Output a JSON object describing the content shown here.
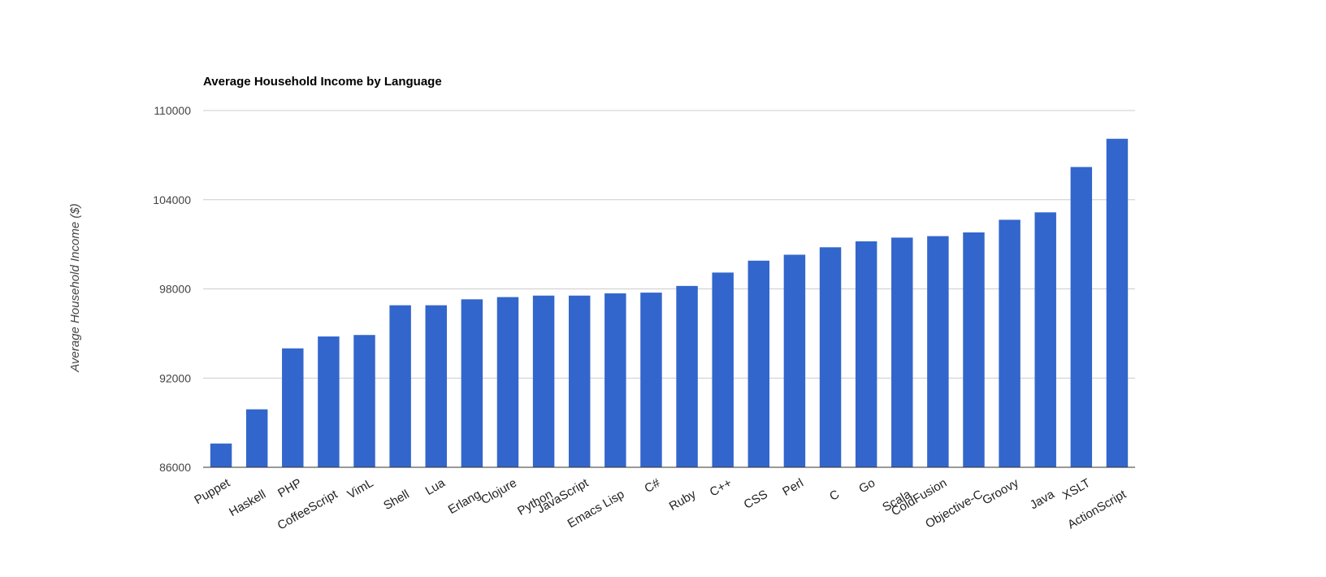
{
  "chart_data": {
    "type": "bar",
    "title": "Average Household Income by Language",
    "xlabel": "",
    "ylabel": "Average Household Income ($)",
    "ylim": [
      86000,
      110000
    ],
    "yticks": [
      "86000",
      "92000",
      "98000",
      "104000",
      "110000"
    ],
    "grid": true,
    "legend": "none",
    "bar_color": "#3366cc",
    "categories": [
      "Puppet",
      "Haskell",
      "PHP",
      "CoffeeScript",
      "VimL",
      "Shell",
      "Lua",
      "Erlang",
      "Clojure",
      "Python",
      "JavaScript",
      "Emacs Lisp",
      "C#",
      "Ruby",
      "C++",
      "CSS",
      "Perl",
      "C",
      "Go",
      "Scala",
      "ColdFusion",
      "Objective-C",
      "Groovy",
      "Java",
      "XSLT",
      "ActionScript"
    ],
    "values": [
      87600,
      89900,
      94000,
      94800,
      94900,
      96900,
      96900,
      97300,
      97450,
      97550,
      97550,
      97700,
      97750,
      98200,
      99100,
      99900,
      100300,
      100800,
      101200,
      101450,
      101550,
      101800,
      102650,
      103150,
      106200,
      108100
    ]
  }
}
